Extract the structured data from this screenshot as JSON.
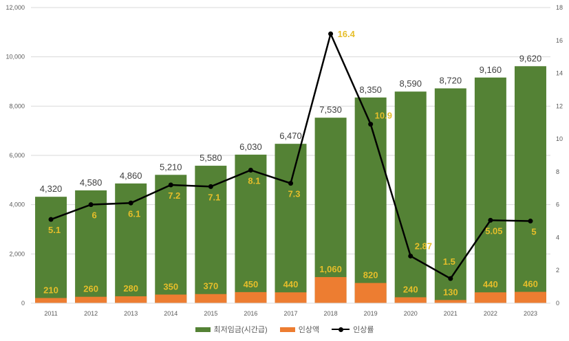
{
  "chart_data": {
    "type": "bar+line",
    "categories": [
      "2011",
      "2012",
      "2013",
      "2014",
      "2015",
      "2016",
      "2017",
      "2018",
      "2019",
      "2020",
      "2021",
      "2022",
      "2023"
    ],
    "series": [
      {
        "name": "최저임금(시간급)",
        "type": "bar",
        "axis": "left",
        "color": "#548235",
        "values": [
          4320,
          4580,
          4860,
          5210,
          5580,
          6030,
          6470,
          7530,
          8350,
          8590,
          8720,
          9160,
          9620
        ],
        "labels": [
          "4,320",
          "4,580",
          "4,860",
          "5,210",
          "5,580",
          "6,030",
          "6,470",
          "7,530",
          "8,350",
          "8,590",
          "8,720",
          "9,160",
          "9,620"
        ]
      },
      {
        "name": "인상액",
        "type": "bar",
        "axis": "left",
        "color": "#ED7D31",
        "values": [
          210,
          260,
          280,
          350,
          370,
          450,
          440,
          1060,
          820,
          240,
          130,
          440,
          460
        ],
        "labels": [
          "210",
          "260",
          "280",
          "350",
          "370",
          "450",
          "440",
          "1,060",
          "820",
          "240",
          "130",
          "440",
          "460"
        ]
      },
      {
        "name": "인상률",
        "type": "line",
        "axis": "right",
        "color": "#000000",
        "values": [
          5.1,
          6,
          6.1,
          7.2,
          7.1,
          8.1,
          7.3,
          16.4,
          10.9,
          2.87,
          1.5,
          5.05,
          5
        ],
        "labels": [
          "5.1",
          "6",
          "6.1",
          "7.2",
          "7.1",
          "8.1",
          "7.3",
          "16.4",
          "10.9",
          "2.87",
          "1.5",
          "5.05",
          "5"
        ]
      }
    ],
    "y_left": {
      "range": [
        0,
        12000
      ],
      "ticks": [
        "0",
        "2,000",
        "4,000",
        "6,000",
        "8,000",
        "10,000",
        "12,000"
      ],
      "tick_values": [
        0,
        2000,
        4000,
        6000,
        8000,
        10000,
        12000
      ]
    },
    "y_right": {
      "range": [
        0,
        18
      ],
      "ticks": [
        "0",
        "2",
        "4",
        "6",
        "8",
        "10",
        "12",
        "14",
        "16",
        "18"
      ],
      "tick_values": [
        0,
        2,
        4,
        6,
        8,
        10,
        12,
        14,
        16,
        18
      ]
    },
    "grid": true,
    "legend_position": "bottom",
    "label_color": "#E6BE2A"
  }
}
